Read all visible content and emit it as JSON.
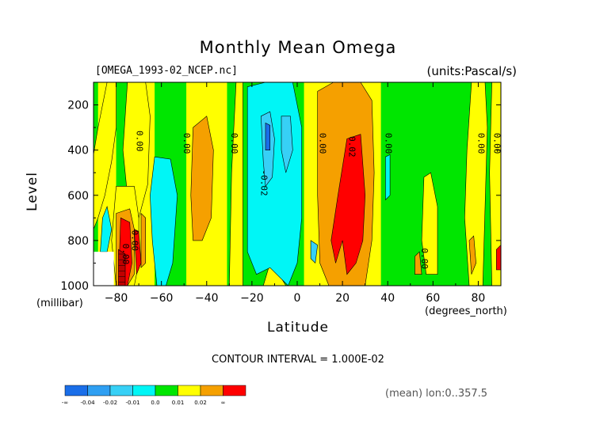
{
  "chart_data": {
    "type": "heatmap",
    "title": "Monthly Mean Omega",
    "file_label": "[OMEGA_1993-02_NCEP.nc]",
    "units_label": "(units:Pascal/s)",
    "ylabel": "Level",
    "ylabel_units": "(millibar)",
    "xlabel": "Latitude",
    "xlabel_units": "(degrees_north)",
    "contour_interval": "CONTOUR INTERVAL = 1.000E-02",
    "footer": "(mean) lon:0..357.5",
    "xlim": [
      -90,
      90
    ],
    "ylim": [
      1000,
      100
    ],
    "x_ticks": [
      -80,
      -60,
      -40,
      -20,
      0,
      20,
      40,
      60,
      80
    ],
    "y_ticks": [
      200,
      400,
      600,
      800,
      1000
    ],
    "colors": {
      "dark_blue": "#1a6ee8",
      "blue": "#2f9ff2",
      "light_blue": "#37d0f6",
      "cyan": "#00f6f6",
      "green": "#00e600",
      "yellow": "#ffff00",
      "orange": "#f5a000",
      "red": "#ff0000",
      "dark_red": "#c00000"
    },
    "colorbar": {
      "labels": [
        "-∞",
        "-0.04",
        "-0.02",
        "-0.01",
        "0.0",
        "0.01",
        "0.02",
        "∞"
      ],
      "colors": [
        "#1a6ee8",
        "#2f9ff2",
        "#37d0f6",
        "#00f6f6",
        "#00e600",
        "#ffff00",
        "#f5a000",
        "#ff0000"
      ]
    },
    "columns": [
      {
        "x0": -90,
        "x1": -88,
        "color": "green"
      },
      {
        "x0": -88,
        "x1": -80,
        "color": "yellow"
      },
      {
        "x0": -80,
        "x1": -72,
        "color": "green"
      },
      {
        "x0": -72,
        "x1": -63,
        "color": "yellow"
      },
      {
        "x0": -63,
        "x1": -49,
        "color": "green"
      },
      {
        "x0": -49,
        "x1": -31,
        "color": "yellow"
      },
      {
        "x0": -31,
        "x1": -24,
        "color": "green"
      },
      {
        "x0": -24,
        "x1": 3,
        "color": "green"
      },
      {
        "x0": 3,
        "x1": 37,
        "color": "yellow"
      },
      {
        "x0": 37,
        "x1": 57,
        "color": "green"
      },
      {
        "x0": 57,
        "x1": 90,
        "color": "green"
      }
    ],
    "regions": [
      {
        "color": "yellow",
        "points": [
          [
            -90,
            420
          ],
          [
            -88,
            300
          ],
          [
            -86,
            200
          ],
          [
            -84,
            100
          ],
          [
            -80,
            100
          ],
          [
            -80,
            300
          ],
          [
            -82,
            450
          ],
          [
            -85,
            600
          ],
          [
            -88,
            700
          ],
          [
            -90,
            750
          ]
        ]
      },
      {
        "color": "yellow",
        "points": [
          [
            -75,
            100
          ],
          [
            -67,
            100
          ],
          [
            -65,
            250
          ],
          [
            -66,
            550
          ],
          [
            -70,
            700
          ],
          [
            -75,
            600
          ],
          [
            -77,
            400
          ]
        ]
      },
      {
        "color": "yellow",
        "points": [
          [
            -80,
            560
          ],
          [
            -72,
            560
          ],
          [
            -70,
            700
          ],
          [
            -70,
            900
          ],
          [
            -72,
            1000
          ],
          [
            -80,
            1000
          ],
          [
            -82,
            800
          ]
        ]
      },
      {
        "color": "yellow",
        "points": [
          [
            -27,
            100
          ],
          [
            -24,
            100
          ],
          [
            -24,
            1000
          ],
          [
            -30,
            1000
          ],
          [
            -29,
            500
          ]
        ]
      },
      {
        "color": "yellow",
        "points": [
          [
            56,
            520
          ],
          [
            59,
            500
          ],
          [
            62,
            650
          ],
          [
            62,
            950
          ],
          [
            57,
            950
          ],
          [
            55,
            800
          ]
        ]
      },
      {
        "color": "yellow",
        "points": [
          [
            77,
            100
          ],
          [
            83,
            100
          ],
          [
            84,
            300
          ],
          [
            82,
            1000
          ],
          [
            76,
            1000
          ],
          [
            74,
            700
          ],
          [
            75,
            400
          ]
        ]
      },
      {
        "color": "yellow",
        "points": [
          [
            86,
            100
          ],
          [
            90,
            100
          ],
          [
            90,
            1000
          ],
          [
            86,
            1000
          ],
          [
            85,
            500
          ]
        ]
      },
      {
        "color": "yellow",
        "points": [
          [
            -15,
            1000
          ],
          [
            -12,
            900
          ],
          [
            -8,
            950
          ],
          [
            -5,
            1000
          ]
        ]
      },
      {
        "color": "cyan",
        "points": [
          [
            -63,
            430
          ],
          [
            -56,
            440
          ],
          [
            -53,
            600
          ],
          [
            -55,
            900
          ],
          [
            -58,
            1000
          ],
          [
            -62,
            1000
          ],
          [
            -64,
            800
          ],
          [
            -65,
            600
          ]
        ]
      },
      {
        "color": "cyan",
        "points": [
          [
            -22,
            120
          ],
          [
            -14,
            100
          ],
          [
            -2,
            100
          ],
          [
            2,
            300
          ],
          [
            2,
            700
          ],
          [
            0,
            900
          ],
          [
            -4,
            1000
          ],
          [
            -12,
            920
          ],
          [
            -18,
            950
          ],
          [
            -22,
            850
          ],
          [
            -22,
            500
          ]
        ]
      },
      {
        "color": "cyan",
        "points": [
          [
            -86,
            700
          ],
          [
            -84,
            650
          ],
          [
            -82,
            750
          ],
          [
            -84,
            850
          ],
          [
            -87,
            850
          ]
        ]
      },
      {
        "color": "cyan",
        "points": [
          [
            39,
            430
          ],
          [
            41,
            420
          ],
          [
            41,
            600
          ],
          [
            39,
            620
          ]
        ]
      },
      {
        "color": "light_blue",
        "points": [
          [
            -16,
            250
          ],
          [
            -12,
            230
          ],
          [
            -10,
            350
          ],
          [
            -11,
            520
          ],
          [
            -14,
            560
          ],
          [
            -15,
            450
          ]
        ]
      },
      {
        "color": "light_blue",
        "points": [
          [
            -7,
            250
          ],
          [
            -3,
            250
          ],
          [
            -2,
            400
          ],
          [
            -5,
            500
          ],
          [
            -7,
            400
          ]
        ]
      },
      {
        "color": "light_blue",
        "points": [
          [
            6,
            800
          ],
          [
            9,
            820
          ],
          [
            8,
            900
          ],
          [
            6,
            880
          ]
        ]
      },
      {
        "color": "dark_blue",
        "points": [
          [
            -14,
            280
          ],
          [
            -12,
            290
          ],
          [
            -12,
            400
          ],
          [
            -14,
            400
          ]
        ]
      },
      {
        "color": "orange",
        "points": [
          [
            9,
            140
          ],
          [
            16,
            100
          ],
          [
            28,
            100
          ],
          [
            33,
            180
          ],
          [
            34,
            500
          ],
          [
            33,
            800
          ],
          [
            30,
            1000
          ],
          [
            22,
            1000
          ],
          [
            14,
            1000
          ],
          [
            10,
            900
          ],
          [
            9,
            600
          ]
        ]
      },
      {
        "color": "orange",
        "points": [
          [
            -46,
            300
          ],
          [
            -40,
            250
          ],
          [
            -37,
            400
          ],
          [
            -38,
            700
          ],
          [
            -42,
            800
          ],
          [
            -46,
            800
          ],
          [
            -47,
            600
          ]
        ]
      },
      {
        "color": "orange",
        "points": [
          [
            -80,
            680
          ],
          [
            -74,
            660
          ],
          [
            -72,
            750
          ],
          [
            -72,
            950
          ],
          [
            -75,
            1000
          ],
          [
            -80,
            1000
          ]
        ]
      },
      {
        "color": "orange",
        "points": [
          [
            -69,
            680
          ],
          [
            -67,
            700
          ],
          [
            -67,
            900
          ],
          [
            -69,
            920
          ]
        ]
      },
      {
        "color": "orange",
        "points": [
          [
            76,
            800
          ],
          [
            78,
            780
          ],
          [
            79,
            900
          ],
          [
            77,
            950
          ]
        ]
      },
      {
        "color": "orange",
        "points": [
          [
            52,
            870
          ],
          [
            54,
            850
          ],
          [
            55,
            950
          ],
          [
            52,
            950
          ]
        ]
      },
      {
        "color": "red",
        "points": [
          [
            22,
            350
          ],
          [
            28,
            330
          ],
          [
            30,
            600
          ],
          [
            29,
            800
          ],
          [
            26,
            900
          ],
          [
            22,
            950
          ],
          [
            20,
            800
          ],
          [
            17,
            900
          ],
          [
            15,
            800
          ],
          [
            18,
            600
          ]
        ]
      },
      {
        "color": "red",
        "points": [
          [
            -78,
            700
          ],
          [
            -74,
            720
          ],
          [
            -73,
            900
          ],
          [
            -75,
            1000
          ],
          [
            -79,
            1000
          ]
        ]
      },
      {
        "color": "red",
        "points": [
          [
            -72,
            750
          ],
          [
            -70,
            760
          ],
          [
            -69,
            900
          ],
          [
            -71,
            950
          ]
        ]
      },
      {
        "color": "red",
        "points": [
          [
            88,
            840
          ],
          [
            90,
            820
          ],
          [
            90,
            930
          ],
          [
            88,
            930
          ]
        ]
      },
      {
        "color": "dark_red",
        "points": [
          [
            -79,
            840
          ],
          [
            -76,
            860
          ],
          [
            -76,
            1000
          ],
          [
            -79,
            1000
          ]
        ]
      }
    ],
    "annotations": [
      {
        "text": "0.00",
        "x": -71,
        "y": 360
      },
      {
        "text": "0.00",
        "x": -50,
        "y": 370
      },
      {
        "text": "0.00",
        "x": -29,
        "y": 370
      },
      {
        "text": "0.00",
        "x": 10,
        "y": 370
      },
      {
        "text": "-0.02",
        "x": -16,
        "y": 545
      },
      {
        "text": "0.02",
        "x": 23,
        "y": 385
      },
      {
        "text": "0.00",
        "x": 39,
        "y": 370
      },
      {
        "text": "0.00",
        "x": 80,
        "y": 370
      },
      {
        "text": "0.00",
        "x": 87,
        "y": 370
      },
      {
        "text": "0.00",
        "x": -73,
        "y": 800
      },
      {
        "text": "0.00",
        "x": -77,
        "y": 860
      },
      {
        "text": "0.00",
        "x": 55,
        "y": 880
      }
    ]
  }
}
